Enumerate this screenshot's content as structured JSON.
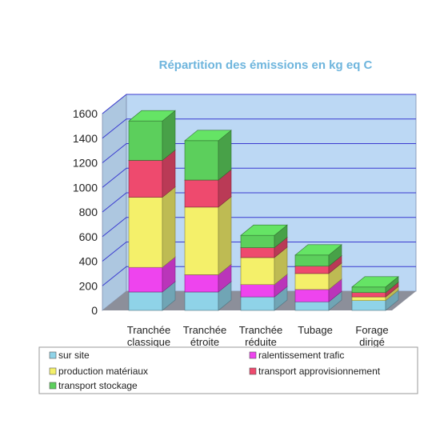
{
  "chart_data": {
    "type": "bar",
    "stacked": true,
    "three_d": true,
    "title": "Répartition des émissions en kg eq C",
    "categories": [
      [
        "Tranchée",
        "classique"
      ],
      [
        "Tranchée",
        "étroite"
      ],
      [
        "Tranchée",
        "réduite"
      ],
      [
        "Tubage"
      ],
      [
        "Forage",
        "dirigé"
      ]
    ],
    "series": [
      {
        "name": "sur site",
        "color": "#8fd3e8",
        "values": [
          150,
          150,
          110,
          70,
          80
        ]
      },
      {
        "name": "ralentissement trafic",
        "color": "#ee44ee",
        "values": [
          200,
          140,
          100,
          100,
          0
        ]
      },
      {
        "name": "production matériaux",
        "color": "#f4f06a",
        "values": [
          570,
          550,
          220,
          130,
          30
        ]
      },
      {
        "name": "transport approvisionnement",
        "color": "#ee4a6e",
        "values": [
          300,
          220,
          80,
          60,
          35
        ]
      },
      {
        "name": "transport stockage",
        "color": "#5ccf5c",
        "values": [
          320,
          320,
          100,
          90,
          45
        ]
      }
    ],
    "ylim": [
      0,
      1600
    ],
    "yticks": [
      0,
      200,
      400,
      600,
      800,
      1000,
      1200,
      1400,
      1600
    ],
    "grid": true,
    "legend_position": "bottom"
  },
  "colors": {
    "title": "#6eb5dd",
    "wall": "#bcd8f4",
    "floor": "#8c8f9a",
    "grid": "#3a3ad0"
  }
}
